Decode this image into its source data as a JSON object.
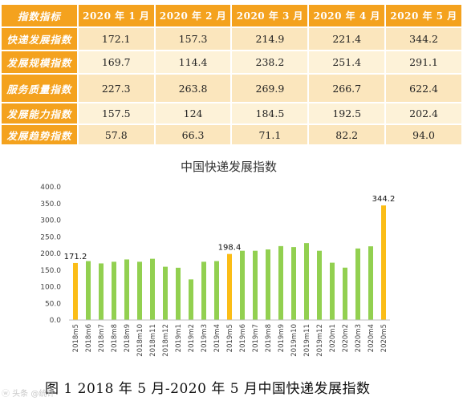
{
  "table": {
    "corner": "指数指标",
    "columns": [
      "2020 年 1 月",
      "2020 年 2 月",
      "2020 年 3 月",
      "2020 年 4 月",
      "2020 年 5 月"
    ],
    "rows": [
      {
        "name": "快递发展指数",
        "values": [
          "172.1",
          "157.3",
          "214.9",
          "221.4",
          "344.2"
        ]
      },
      {
        "name": "发展规模指数",
        "values": [
          "169.7",
          "114.4",
          "238.2",
          "251.4",
          "291.1"
        ]
      },
      {
        "name": "服务质量指数",
        "values": [
          "227.3",
          "263.8",
          "269.9",
          "266.7",
          "622.4"
        ]
      },
      {
        "name": "发展能力指数",
        "values": [
          "157.5",
          "124",
          "184.5",
          "192.5",
          "202.4"
        ]
      },
      {
        "name": "发展趋势指数",
        "values": [
          "57.8",
          "66.3",
          "71.1",
          "82.2",
          "94.0"
        ]
      }
    ]
  },
  "chart_data": {
    "type": "bar",
    "title": "中国快递发展指数",
    "categories": [
      "2018m5",
      "2018m6",
      "2018m7",
      "2018m8",
      "2018m9",
      "2018m10",
      "2018m11",
      "2018m12",
      "2019m1",
      "2019m2",
      "2019m3",
      "2019m4",
      "2019m5",
      "2019m6",
      "2019m7",
      "2019m8",
      "2019m9",
      "2019m10",
      "2019m11",
      "2019m12",
      "2020m1",
      "2020m2",
      "2020m3",
      "2020m4",
      "2020m5"
    ],
    "values": [
      171.2,
      177,
      170,
      175,
      182,
      175,
      184,
      160,
      157,
      122,
      175,
      177,
      198.4,
      208,
      208,
      212,
      222,
      219,
      231,
      208,
      172.1,
      157.3,
      214.9,
      221.4,
      344.2
    ],
    "highlight_indices": [
      0,
      12,
      24
    ],
    "data_labels": {
      "0": "171.2",
      "12": "198.4",
      "24": "344.2"
    },
    "ylim": [
      0,
      400
    ],
    "yticks": [
      "0.0",
      "50.0",
      "100.0",
      "150.0",
      "200.0",
      "250.0",
      "300.0",
      "350.0",
      "400.0"
    ],
    "ytick_step": 50,
    "grid": false,
    "legend": "none",
    "colors": {
      "bar": "#92d050",
      "highlight": "#fbbd17",
      "axis": "#bfbfbf"
    }
  },
  "caption": "图 1   2018 年 5 月-2020 年 5 月中国快递发展指数",
  "watermark": "ⓦ 头条 @统计"
}
